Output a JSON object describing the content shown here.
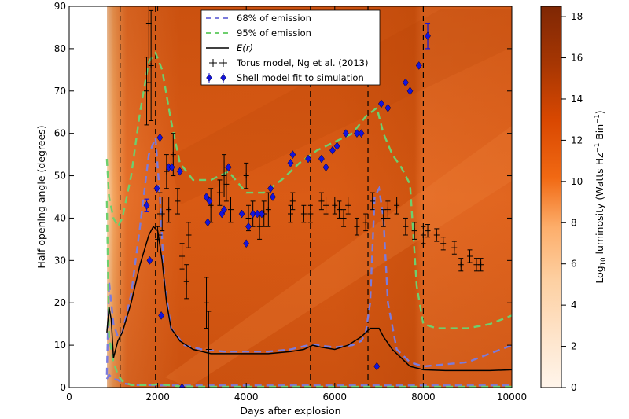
{
  "chart_data": {
    "type": "line",
    "xlabel": "Days after explosion",
    "ylabel": "Half opening angle (degrees)",
    "xlim": [
      0,
      10000
    ],
    "ylim": [
      0,
      90
    ],
    "x_ticks": [
      "0",
      "2000",
      "4000",
      "6000",
      "8000",
      "10000"
    ],
    "y_ticks": [
      "0",
      "10",
      "20",
      "30",
      "40",
      "50",
      "60",
      "70",
      "80",
      "90"
    ],
    "background": "heatmap of log10 luminosity; emission starts near 800 days",
    "colorbar": {
      "label": "Log10 luminosity (Watts Hz⁻¹ Bin⁻¹)",
      "label_display": [
        "Log",
        "10",
        " luminosity (Watts Hz",
        "−1",
        " Bin",
        "−1",
        ")"
      ],
      "range": [
        0,
        18.5
      ],
      "ticks": [
        "0",
        "2",
        "4",
        "6",
        "8",
        "10",
        "12",
        "14",
        "16",
        "18"
      ],
      "colors": [
        "#fff5eb",
        "#fdd0a2",
        "#fdae6b",
        "#f16913",
        "#d94801",
        "#a63603",
        "#7f2704"
      ]
    },
    "vertical_lines_x": [
      1150,
      1950,
      5450,
      6750,
      8000
    ],
    "legend": {
      "position": "top-center",
      "entries": [
        "68% of emission",
        "95% of emission",
        "E(r)",
        "Torus model, Ng et al. (2013)",
        "Shell model fit to simulation"
      ]
    },
    "series": [
      {
        "name": "68% of emission",
        "style": "dashed",
        "color": "#7b7bdc",
        "kind": "upper",
        "x": [
          850,
          900,
          1000,
          1100,
          1200,
          1400,
          1600,
          1800,
          1950,
          2050,
          2150,
          2300,
          2600,
          3000,
          3500,
          4000,
          4500,
          5000,
          5400,
          5600,
          6000,
          6400,
          6600,
          6700,
          6800,
          6900,
          7000,
          7100,
          7200,
          7400,
          7700,
          8000,
          9000,
          10000
        ],
        "y": [
          3,
          25,
          15,
          12,
          13,
          22,
          38,
          55,
          59,
          45,
          25,
          14,
          10,
          9,
          8.5,
          8.5,
          8.5,
          9,
          10,
          10,
          9.5,
          10,
          11,
          13,
          20,
          45,
          47,
          40,
          20,
          9,
          6,
          5,
          6,
          10
        ]
      },
      {
        "name": "68% of emission",
        "style": "dashed",
        "color": "#7b7bdc",
        "kind": "lower",
        "x": [
          850,
          900,
          1000,
          1100,
          1200,
          1500,
          1800,
          2000,
          2500,
          3000,
          4000,
          5000,
          6000,
          7000,
          8000,
          9000,
          10000
        ],
        "y": [
          2,
          3,
          2,
          1.8,
          1,
          0.6,
          0.6,
          0.5,
          0.5,
          0.5,
          0.5,
          0.5,
          0.5,
          0.5,
          0.5,
          0.5,
          0.5
        ]
      },
      {
        "name": "95% of emission",
        "style": "dashed",
        "color": "#6ecf6e",
        "kind": "upper",
        "x": [
          850,
          900,
          1000,
          1100,
          1200,
          1400,
          1600,
          1800,
          1950,
          2100,
          2300,
          2500,
          2800,
          3200,
          3600,
          4000,
          4400,
          4800,
          5200,
          5600,
          6000,
          6400,
          6700,
          6950,
          7100,
          7300,
          7500,
          7700,
          7850,
          8000,
          8300,
          8600,
          9000,
          9500,
          10000
        ],
        "y": [
          54,
          45,
          40,
          38,
          40,
          50,
          65,
          77,
          79,
          75,
          63,
          53,
          49,
          49,
          51,
          46,
          46,
          49,
          53,
          56,
          58,
          60,
          64,
          66,
          60,
          55,
          52,
          48,
          24,
          15,
          14,
          14,
          14,
          15,
          17
        ]
      },
      {
        "name": "95% of emission",
        "style": "dashed",
        "color": "#6ecf6e",
        "kind": "lower",
        "x": [
          850,
          900,
          1000,
          1100,
          1200,
          1400,
          1800,
          2000,
          2200,
          2500,
          3000,
          4000,
          6000,
          8000,
          10000
        ],
        "y": [
          44,
          12,
          6,
          3,
          1.5,
          0.6,
          0.6,
          0.8,
          0.6,
          0.3,
          0.2,
          0.2,
          0.2,
          0.2,
          0.2
        ]
      },
      {
        "name": "E(r)",
        "style": "solid",
        "color": "#000000",
        "x": [
          850,
          900,
          950,
          1000,
          1050,
          1100,
          1150,
          1200,
          1400,
          1600,
          1800,
          1900,
          2000,
          2100,
          2200,
          2300,
          2500,
          2800,
          3200,
          3600,
          4000,
          4500,
          5000,
          5300,
          5500,
          5700,
          6000,
          6300,
          6600,
          6800,
          7000,
          7100,
          7300,
          7500,
          7700,
          7900,
          8000,
          8500,
          9000,
          9500,
          10000
        ],
        "y": [
          13,
          19,
          16,
          7,
          9,
          11,
          12,
          13,
          20,
          29,
          36,
          38,
          37,
          30,
          20,
          14,
          11,
          9,
          8,
          8,
          8,
          8,
          8.5,
          9,
          10,
          9.5,
          9,
          10,
          12,
          14,
          14,
          12,
          9,
          7,
          5,
          4.5,
          4.2,
          4,
          4,
          4,
          4.2
        ]
      },
      {
        "name": "Torus model, Ng et al. (2013)",
        "marker": "+",
        "color": "#000000",
        "points": [
          [
            1750,
            70,
            8
          ],
          [
            1800,
            86,
            14
          ],
          [
            1850,
            76,
            13
          ],
          [
            2000,
            35,
            3
          ],
          [
            2050,
            41,
            5
          ],
          [
            2100,
            41,
            4
          ],
          [
            2200,
            51,
            4
          ],
          [
            2250,
            42,
            3
          ],
          [
            2350,
            55,
            5
          ],
          [
            2450,
            44,
            3
          ],
          [
            2550,
            31,
            3
          ],
          [
            2650,
            25,
            4
          ],
          [
            2700,
            36,
            3
          ],
          [
            3150,
            9,
            9
          ],
          [
            3100,
            20,
            6
          ],
          [
            3200,
            43,
            4
          ],
          [
            3400,
            46,
            3
          ],
          [
            3500,
            50,
            5
          ],
          [
            3550,
            48,
            4
          ],
          [
            3650,
            42,
            3
          ],
          [
            4000,
            50,
            3
          ],
          [
            4050,
            40,
            3
          ],
          [
            4150,
            41,
            3
          ],
          [
            4300,
            38,
            3
          ],
          [
            4400,
            41,
            3
          ],
          [
            4500,
            42,
            4
          ],
          [
            5000,
            41,
            2
          ],
          [
            5050,
            44,
            2
          ],
          [
            5300,
            41,
            2
          ],
          [
            5450,
            41,
            2
          ],
          [
            5700,
            44,
            2
          ],
          [
            5800,
            43,
            2
          ],
          [
            6000,
            43,
            2
          ],
          [
            6100,
            42,
            2
          ],
          [
            6200,
            40,
            2
          ],
          [
            6300,
            43,
            2
          ],
          [
            6500,
            38,
            2
          ],
          [
            6700,
            39,
            2
          ],
          [
            6850,
            44,
            2
          ],
          [
            7100,
            40,
            2
          ],
          [
            7200,
            42,
            2
          ],
          [
            7400,
            43,
            2
          ],
          [
            7600,
            38,
            2
          ],
          [
            7800,
            37,
            2
          ],
          [
            8000,
            36,
            2
          ],
          [
            8100,
            37,
            1.5
          ],
          [
            8300,
            36,
            1.5
          ],
          [
            8450,
            34,
            1.5
          ],
          [
            8700,
            33,
            1.5
          ],
          [
            8850,
            29,
            1.5
          ],
          [
            9050,
            31,
            1.5
          ],
          [
            9200,
            29,
            1.5
          ],
          [
            9300,
            29,
            1.5
          ]
        ]
      },
      {
        "name": "Shell model fit to simulation",
        "marker": "diamond",
        "color": "#1414dc",
        "points": [
          [
            1750,
            43,
            1.5
          ],
          [
            1820,
            30,
            0
          ],
          [
            1980,
            47,
            0
          ],
          [
            2050,
            59,
            0
          ],
          [
            2080,
            17,
            0
          ],
          [
            2250,
            52,
            0
          ],
          [
            2320,
            52,
            0
          ],
          [
            2500,
            51,
            0
          ],
          [
            2550,
            0,
            0
          ],
          [
            3100,
            45,
            0
          ],
          [
            3130,
            39,
            0
          ],
          [
            3170,
            44,
            0
          ],
          [
            3450,
            41,
            0
          ],
          [
            3500,
            42,
            0
          ],
          [
            3600,
            52,
            0
          ],
          [
            3900,
            41,
            0
          ],
          [
            4000,
            34,
            0
          ],
          [
            4050,
            38,
            0
          ],
          [
            4150,
            41,
            0
          ],
          [
            4250,
            41,
            0
          ],
          [
            4350,
            41,
            0
          ],
          [
            4550,
            47,
            0
          ],
          [
            4600,
            45,
            0
          ],
          [
            5000,
            53,
            0
          ],
          [
            5050,
            55,
            0
          ],
          [
            5400,
            54,
            0
          ],
          [
            5700,
            54,
            0
          ],
          [
            5800,
            52,
            0
          ],
          [
            5950,
            56,
            0
          ],
          [
            6050,
            57,
            0
          ],
          [
            6250,
            60,
            0
          ],
          [
            6500,
            60,
            0
          ],
          [
            6600,
            60,
            0
          ],
          [
            6950,
            5,
            0
          ],
          [
            7050,
            67,
            0
          ],
          [
            7200,
            66,
            0
          ],
          [
            7600,
            72,
            0
          ],
          [
            7700,
            70,
            0
          ],
          [
            7900,
            76,
            0
          ],
          [
            8100,
            83,
            3
          ]
        ]
      }
    ]
  }
}
